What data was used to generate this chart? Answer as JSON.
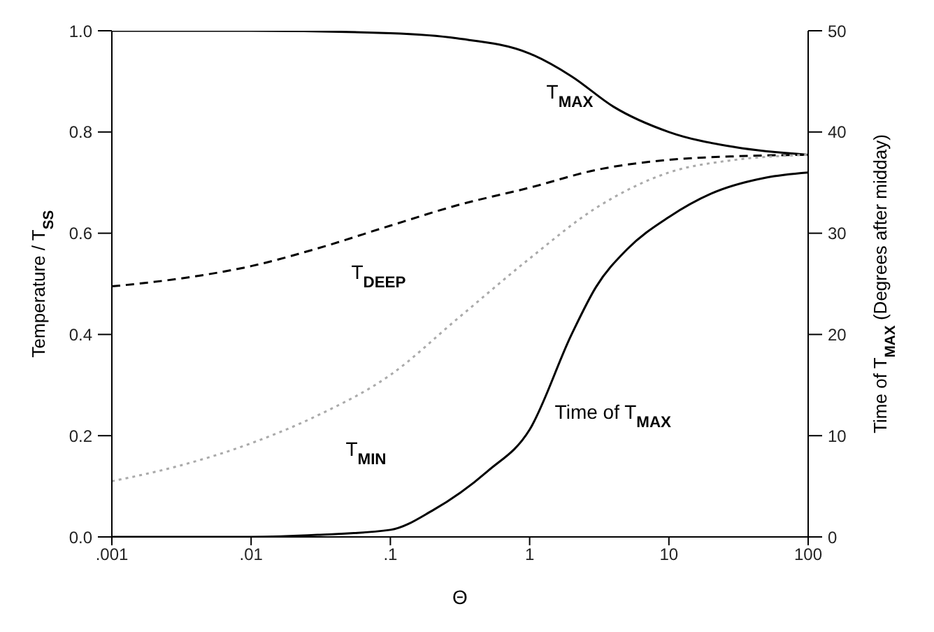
{
  "chart_data": {
    "type": "line",
    "xlabel": "Θ",
    "ylabel": "Temperature / T$_{SS}$",
    "y2label": "Time of T$_{MAX}$ (Degrees after midday)",
    "log": "x",
    "marker": "none",
    "xlim": [
      0.001,
      100
    ],
    "xticks": [
      {
        "value": 0.001,
        "label": ".001"
      },
      {
        "value": 0.01,
        "label": ".01"
      },
      {
        "value": 0.1,
        "label": ".1"
      },
      1,
      10,
      100
    ],
    "ylim": [
      0,
      1
    ],
    "yticks": [
      {
        "value": 0,
        "label": "0.0"
      },
      0.2,
      0.4,
      0.6,
      0.8,
      {
        "value": 1,
        "label": "1.0"
      }
    ],
    "y2lim": [
      0,
      50
    ],
    "y2ticks": [
      0,
      10,
      20,
      30,
      40,
      50
    ],
    "series": [
      {
        "name": "T$_{MAX}$",
        "color": "#000000",
        "line_style": "solid",
        "x": [
          0.001,
          0.01,
          0.1,
          0.3,
          1,
          2,
          4,
          10,
          30,
          100
        ],
        "values": [
          1.0,
          1.0,
          0.995,
          0.985,
          0.955,
          0.91,
          0.85,
          0.8,
          0.77,
          0.755
        ]
      },
      {
        "name": "T$_{DEEP}$",
        "color": "#000000",
        "line_style": "dashed",
        "x": [
          0.001,
          0.003,
          0.01,
          0.03,
          0.1,
          0.3,
          1,
          3,
          10,
          30,
          100
        ],
        "values": [
          0.495,
          0.51,
          0.535,
          0.57,
          0.615,
          0.655,
          0.69,
          0.725,
          0.745,
          0.752,
          0.755
        ]
      },
      {
        "name": "T$_{MIN}$",
        "color": "#aaaaaa",
        "line_style": "dotted",
        "x": [
          0.001,
          0.003,
          0.01,
          0.03,
          0.1,
          0.3,
          1,
          3,
          10,
          30,
          100
        ],
        "values": [
          0.11,
          0.14,
          0.185,
          0.24,
          0.32,
          0.43,
          0.55,
          0.65,
          0.72,
          0.745,
          0.755
        ]
      },
      {
        "name": "Time of T$_{MAX}$",
        "color": "#000000",
        "line_style": "solid",
        "axis": "y2",
        "x": [
          0.001,
          0.01,
          0.03,
          0.1,
          0.2,
          0.5,
          1,
          2,
          3,
          5,
          10,
          20,
          50,
          100
        ],
        "values": [
          0,
          0,
          0.2,
          0.7,
          2.6,
          6.5,
          10.6,
          20,
          24.7,
          28.4,
          31.6,
          33.9,
          35.5,
          36
        ]
      }
    ]
  }
}
